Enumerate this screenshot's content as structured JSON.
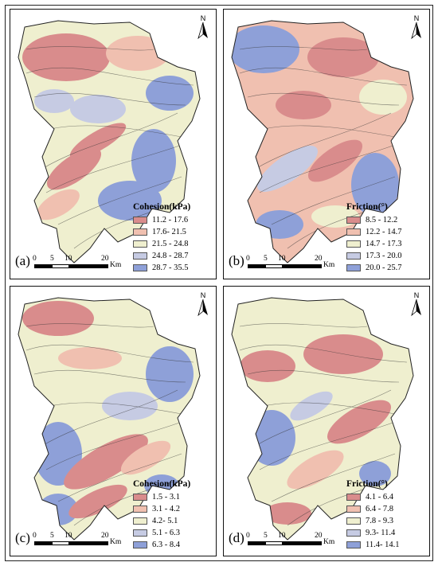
{
  "panels": [
    {
      "label": "(a)",
      "legend_title": "Cohesion(kPa)",
      "north": "N",
      "scale": {
        "ticks": [
          "0",
          "5",
          "10",
          "20"
        ],
        "unit": "Km"
      },
      "classes": [
        {
          "label": "11.2 - 17.6",
          "color": "#d98c8c"
        },
        {
          "label": "17.6- 21.5",
          "color": "#f0c0b0"
        },
        {
          "label": "21.5 - 24.8",
          "color": "#efefcf"
        },
        {
          "label": "24.8 - 28.7",
          "color": "#c6cbe3"
        },
        {
          "label": "28.7 - 35.5",
          "color": "#8ea0d8"
        }
      ]
    },
    {
      "label": "(b)",
      "legend_title": "Friction(°)",
      "north": "N",
      "scale": {
        "ticks": [
          "0",
          "5",
          "10",
          "20"
        ],
        "unit": "Km"
      },
      "classes": [
        {
          "label": "8.5 - 12.2",
          "color": "#d98c8c"
        },
        {
          "label": "12.2 - 14.7",
          "color": "#f0c0b0"
        },
        {
          "label": "14.7 - 17.3",
          "color": "#efefcf"
        },
        {
          "label": "17.3 - 20.0",
          "color": "#c6cbe3"
        },
        {
          "label": "20.0 - 25.7",
          "color": "#8ea0d8"
        }
      ]
    },
    {
      "label": "(c)",
      "legend_title": "Cohesion(kPa)",
      "north": "N",
      "scale": {
        "ticks": [
          "0",
          "5",
          "10",
          "20"
        ],
        "unit": "Km"
      },
      "classes": [
        {
          "label": "1.5 - 3.1",
          "color": "#d98c8c"
        },
        {
          "label": "3.1 - 4.2",
          "color": "#f0c0b0"
        },
        {
          "label": "4.2- 5.1",
          "color": "#efefcf"
        },
        {
          "label": "5.1 - 6.3",
          "color": "#c6cbe3"
        },
        {
          "label": "6.3 - 8.4",
          "color": "#8ea0d8"
        }
      ]
    },
    {
      "label": "(d)",
      "legend_title": "Friction(°)",
      "north": "N",
      "scale": {
        "ticks": [
          "0",
          "5",
          "10",
          "20"
        ],
        "unit": "Km"
      },
      "classes": [
        {
          "label": "4.1 - 6.4",
          "color": "#d98c8c"
        },
        {
          "label": "6.4 - 7.8",
          "color": "#f0c0b0"
        },
        {
          "label": "7.8 - 9.3",
          "color": "#efefcf"
        },
        {
          "label": "9.3- 11.4",
          "color": "#c6cbe3"
        },
        {
          "label": "11.4- 14.1",
          "color": "#8ea0d8"
        }
      ]
    }
  ]
}
